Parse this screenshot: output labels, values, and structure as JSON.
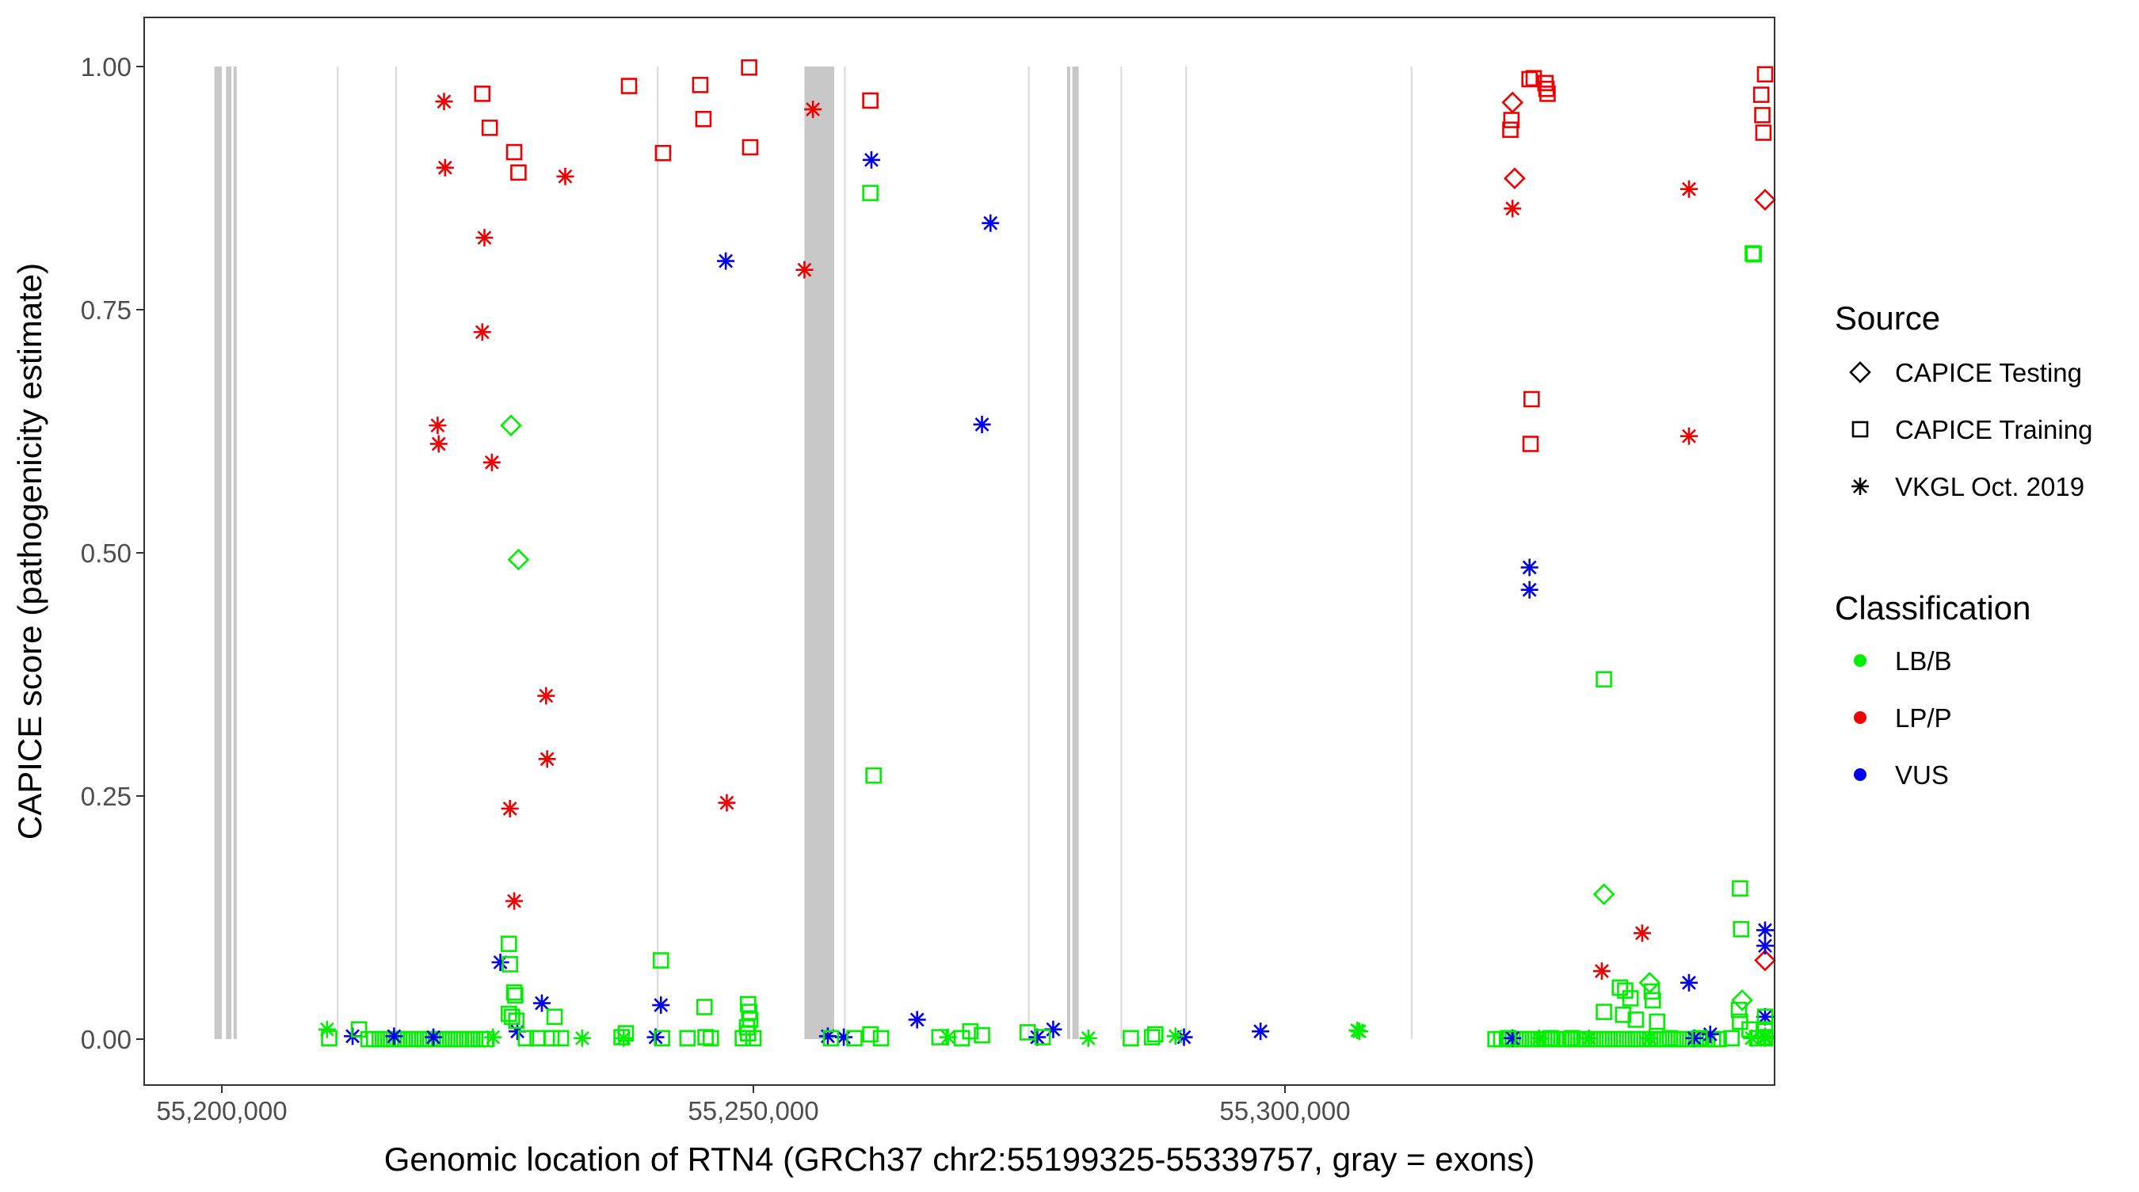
{
  "chart_data": {
    "type": "scatter",
    "xlabel": "Genomic location of RTN4 (GRCh37 chr2:55199325-55339757, gray = exons)",
    "ylabel": "CAPICE score (pathogenicity estimate)",
    "xlim": [
      55194000,
      55345000
    ],
    "ylim": [
      -0.05,
      1.05
    ],
    "x_ticks": [
      55200000,
      55250000,
      55300000
    ],
    "x_tick_labels": [
      "55,200,000",
      "55,250,000",
      "55,300,000"
    ],
    "y_ticks": [
      0,
      0.25,
      0.5,
      0.75,
      1
    ],
    "y_tick_labels": [
      "0.00",
      "0.25",
      "0.50",
      "0.75",
      "1.00"
    ],
    "grid": false,
    "legend_placement": "right",
    "legend": {
      "source_title": "Source",
      "source_items": [
        {
          "label": "CAPICE Testing",
          "shape": "diamond"
        },
        {
          "label": "CAPICE Training",
          "shape": "square"
        },
        {
          "label": "VKGL Oct. 2019",
          "shape": "asterisk"
        }
      ],
      "class_title": "Classification",
      "class_items": [
        {
          "label": "LB/B",
          "color": "#00ee00"
        },
        {
          "label": "LP/P",
          "color": "#ee0000"
        },
        {
          "label": "VUS",
          "color": "#0000ee"
        }
      ]
    },
    "colors": {
      "LB/B": "#00ee00",
      "LP/P": "#ee0000",
      "VUS": "#0000ee",
      "exon": "#c8c8c8",
      "intron_line": "#d8d8d8"
    },
    "exons": [
      [
        55199300,
        55200000
      ],
      [
        55200400,
        55200900
      ],
      [
        55201100,
        55201300
      ],
      [
        55254800,
        55257600
      ],
      [
        55279500,
        55279800
      ],
      [
        55280000,
        55280600
      ]
    ],
    "intron_lines": [
      55210900,
      55216400,
      55241000,
      55258600,
      55275900,
      55284600,
      55290700,
      55311900,
      55346200
    ],
    "series": [
      {
        "name": "CAPICE Training",
        "shape": "square",
        "classification": "LP/P",
        "points": [
          [
            55224500,
            0.972
          ],
          [
            55225200,
            0.937
          ],
          [
            55227500,
            0.912
          ],
          [
            55227900,
            0.891
          ],
          [
            55238300,
            0.98
          ],
          [
            55241500,
            0.911
          ],
          [
            55245000,
            0.981
          ],
          [
            55245300,
            0.946
          ],
          [
            55249600,
            0.999
          ],
          [
            55249700,
            0.917
          ],
          [
            55261000,
            0.965
          ],
          [
            55321200,
            0.935
          ],
          [
            55321300,
            0.945
          ],
          [
            55323000,
            0.987
          ],
          [
            55323400,
            0.988
          ],
          [
            55324500,
            0.983
          ],
          [
            55324600,
            0.977
          ],
          [
            55324700,
            0.972
          ],
          [
            55323200,
            0.658
          ],
          [
            55323100,
            0.612
          ],
          [
            55344800,
            0.971
          ],
          [
            55344900,
            0.95
          ],
          [
            55345000,
            0.932
          ],
          [
            55350000,
            0.992
          ]
        ]
      },
      {
        "name": "CAPICE Testing",
        "shape": "diamond",
        "classification": "LP/P",
        "points": [
          [
            55321400,
            0.963
          ],
          [
            55321600,
            0.885
          ],
          [
            55350200,
            0.863
          ],
          [
            55350100,
            0.081
          ]
        ]
      },
      {
        "name": "VKGL Oct. 2019",
        "shape": "asterisk",
        "classification": "LP/P",
        "points": [
          [
            55220900,
            0.964
          ],
          [
            55221000,
            0.896
          ],
          [
            55220300,
            0.631
          ],
          [
            55220400,
            0.612
          ],
          [
            55224700,
            0.824
          ],
          [
            55224500,
            0.727
          ],
          [
            55225400,
            0.593
          ],
          [
            55227100,
            0.237
          ],
          [
            55227500,
            0.142
          ],
          [
            55232300,
            0.887
          ],
          [
            55230500,
            0.353
          ],
          [
            55230600,
            0.288
          ],
          [
            55254800,
            0.791
          ],
          [
            55255600,
            0.956
          ],
          [
            55247500,
            0.243
          ],
          [
            55321400,
            0.854
          ],
          [
            55338000,
            0.874
          ],
          [
            55338000,
            0.62
          ],
          [
            55329800,
            0.07
          ],
          [
            55333600,
            0.109
          ]
        ]
      },
      {
        "name": "VKGL Oct. 2019",
        "shape": "asterisk",
        "classification": "VUS",
        "points": [
          [
            55261100,
            0.904
          ],
          [
            55272300,
            0.839
          ],
          [
            55247400,
            0.8
          ],
          [
            55271500,
            0.632
          ],
          [
            55323000,
            0.485
          ],
          [
            55323000,
            0.462
          ],
          [
            55226200,
            0.079
          ],
          [
            55241300,
            0.035
          ],
          [
            55230100,
            0.037
          ],
          [
            55227800,
            0.008
          ],
          [
            55212300,
            0.003
          ],
          [
            55216200,
            0.003
          ],
          [
            55219900,
            0.002
          ],
          [
            55240800,
            0.002
          ],
          [
            55257000,
            0.003
          ],
          [
            55258500,
            0.002
          ],
          [
            55265400,
            0.02
          ],
          [
            55276700,
            0.002
          ],
          [
            55278200,
            0.01
          ],
          [
            55290500,
            0.002
          ],
          [
            55297700,
            0.008
          ],
          [
            55321400,
            0.001
          ],
          [
            55338000,
            0.058
          ],
          [
            55349400,
            0.096
          ],
          [
            55350400,
            0.112
          ],
          [
            55350700,
            0.023
          ],
          [
            55338500,
            0.001
          ],
          [
            55340000,
            0.005
          ]
        ]
      },
      {
        "name": "CAPICE Training",
        "shape": "square",
        "classification": "LB/B",
        "points": [
          [
            55261000,
            0.87
          ],
          [
            55344000,
            0.808
          ],
          [
            55344100,
            0.807
          ],
          [
            55261300,
            0.271
          ],
          [
            55330000,
            0.37
          ],
          [
            55342800,
            0.155
          ],
          [
            55342900,
            0.113
          ],
          [
            55227000,
            0.098
          ],
          [
            55227100,
            0.077
          ],
          [
            55227500,
            0.048
          ],
          [
            55227600,
            0.045
          ],
          [
            55241300,
            0.081
          ],
          [
            55227000,
            0.026
          ],
          [
            55227300,
            0.023
          ],
          [
            55227700,
            0.019
          ],
          [
            55231300,
            0.023
          ],
          [
            55245400,
            0.033
          ],
          [
            55249500,
            0.036
          ],
          [
            55249600,
            0.028
          ],
          [
            55249700,
            0.02
          ],
          [
            55249400,
            0.012
          ],
          [
            55249500,
            0.006
          ],
          [
            55331500,
            0.053
          ],
          [
            55332000,
            0.05
          ],
          [
            55332500,
            0.042
          ],
          [
            55334500,
            0.049
          ],
          [
            55334600,
            0.04
          ],
          [
            55330000,
            0.028
          ],
          [
            55331800,
            0.025
          ],
          [
            55333000,
            0.02
          ],
          [
            55335000,
            0.018
          ],
          [
            55342700,
            0.03
          ],
          [
            55342800,
            0.018
          ],
          [
            55343700,
            0.01
          ],
          [
            55346500,
            0.01
          ],
          [
            55351000,
            0.023
          ],
          [
            55210100,
            0.001
          ],
          [
            55212900,
            0.01
          ],
          [
            55228600,
            0.001
          ],
          [
            55229700,
            0.001
          ],
          [
            55231000,
            0.001
          ],
          [
            55231900,
            0.001
          ],
          [
            55237600,
            0.002
          ],
          [
            55238000,
            0.006
          ],
          [
            55241400,
            0.001
          ],
          [
            55243800,
            0.001
          ],
          [
            55245500,
            0.002
          ],
          [
            55246000,
            0.001
          ],
          [
            55249000,
            0.001
          ],
          [
            55250000,
            0.001
          ],
          [
            55257300,
            0.001
          ],
          [
            55259500,
            0.001
          ],
          [
            55261000,
            0.005
          ],
          [
            55262000,
            0.001
          ],
          [
            55267500,
            0.002
          ],
          [
            55269600,
            0.001
          ],
          [
            55270400,
            0.008
          ],
          [
            55271500,
            0.004
          ],
          [
            55275800,
            0.007
          ],
          [
            55277200,
            0.002
          ],
          [
            55285500,
            0.001
          ],
          [
            55287500,
            0.002
          ],
          [
            55287800,
            0.005
          ],
          [
            55321000,
            0.001
          ],
          [
            55325000,
            0.001
          ],
          [
            55327000,
            0.001
          ],
          [
            55336200,
            0.001
          ],
          [
            55339000,
            0.001
          ],
          [
            55342000,
            0.001
          ],
          [
            55344400,
            0.001
          ],
          [
            55346000,
            0.002
          ],
          [
            55349000,
            0.001
          ],
          [
            55351800,
            0.001
          ],
          [
            55353300,
            0.001
          ]
        ]
      },
      {
        "name": "CAPICE Testing",
        "shape": "diamond",
        "classification": "LB/B",
        "points": [
          [
            55227200,
            0.631
          ],
          [
            55227900,
            0.493
          ],
          [
            55330000,
            0.149
          ],
          [
            55334300,
            0.058
          ],
          [
            55343000,
            0.04
          ]
        ]
      },
      {
        "name": "VKGL Oct. 2019",
        "shape": "asterisk",
        "classification": "LB/B",
        "points": [
          [
            55209900,
            0.01
          ],
          [
            55225500,
            0.002
          ],
          [
            55233900,
            0.001
          ],
          [
            55237800,
            0.001
          ],
          [
            55268300,
            0.002
          ],
          [
            55281500,
            0.001
          ],
          [
            55289700,
            0.003
          ],
          [
            55306800,
            0.009
          ],
          [
            55307000,
            0.008
          ],
          [
            55323900,
            0.001
          ],
          [
            55328600,
            0.001
          ],
          [
            55334300,
            0.001
          ],
          [
            55343900,
            0.001
          ],
          [
            55346000,
            0.003
          ],
          [
            55349400,
            0.001
          ]
        ]
      }
    ],
    "dense_clusters": [
      {
        "classification": "LB/B",
        "shape": "square",
        "x_from": 55213800,
        "x_to": 55224900,
        "y": 0.0,
        "count": 22
      },
      {
        "classification": "LB/B",
        "shape": "square",
        "x_from": 55319800,
        "x_to": 55340800,
        "y": 0.0,
        "count": 40
      }
    ]
  }
}
